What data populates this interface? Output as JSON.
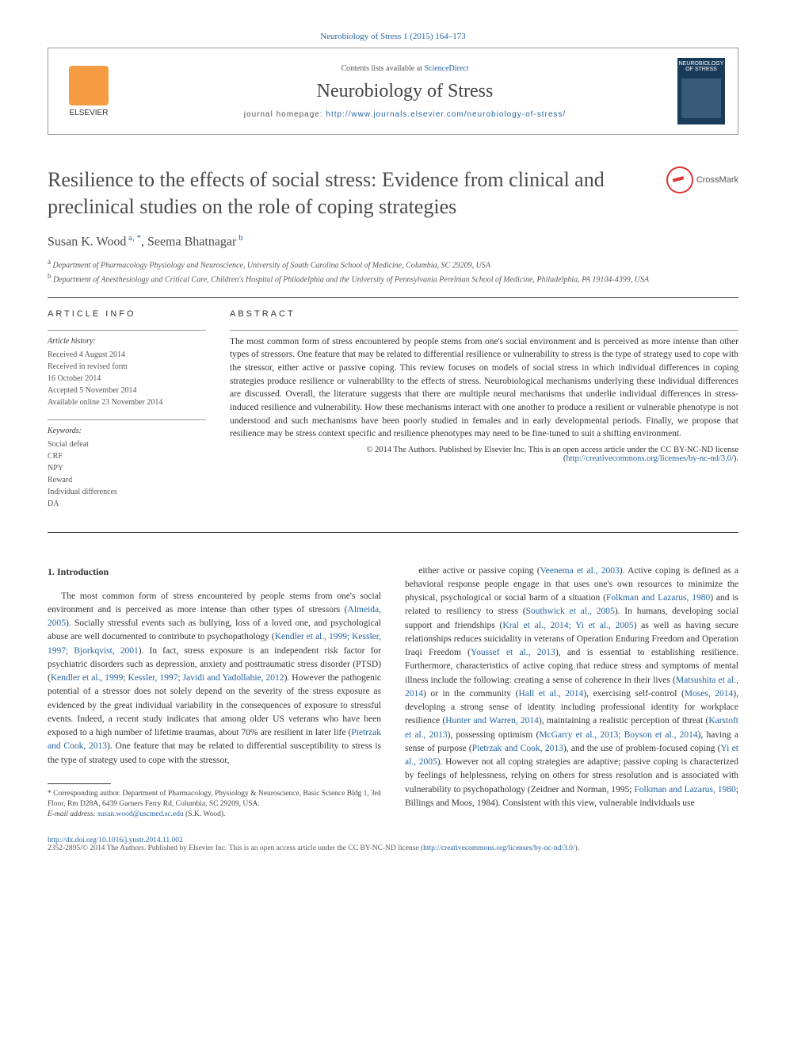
{
  "citation": "Neurobiology of Stress 1 (2015) 164–173",
  "header": {
    "contents_prefix": "Contents lists available at ",
    "contents_link": "ScienceDirect",
    "journal_name": "Neurobiology of Stress",
    "homepage_prefix": "journal homepage: ",
    "homepage_url": "http://www.journals.elsevier.com/neurobiology-of-stress/",
    "elsevier_label": "ELSEVIER",
    "cover_label": "NEUROBIOLOGY OF STRESS"
  },
  "title": "Resilience to the effects of social stress: Evidence from clinical and preclinical studies on the role of coping strategies",
  "crossmark_label": "CrossMark",
  "authors_html": "Susan K. Wood",
  "author1": "Susan K. Wood",
  "author1_sup": " a, *",
  "sep": ", ",
  "author2": "Seema Bhatnagar",
  "author2_sup": " b",
  "affiliations": {
    "a": "Department of Pharmacology Physiology and Neuroscience, University of South Carolina School of Medicine, Columbia, SC 29209, USA",
    "b": "Department of Anesthesiology and Critical Care, Children's Hospital of Philadelphia and the University of Pennsylvania Perelman School of Medicine, Philadelphia, PA 19104-4399, USA"
  },
  "article_info": {
    "heading": "ARTICLE INFO",
    "history_label": "Article history:",
    "received": "Received 4 August 2014",
    "revised": "Received in revised form",
    "revised_date": "16 October 2014",
    "accepted": "Accepted 5 November 2014",
    "online": "Available online 23 November 2014",
    "keywords_label": "Keywords:",
    "keywords": [
      "Social defeat",
      "CRF",
      "NPY",
      "Reward",
      "Individual differences",
      "DA"
    ]
  },
  "abstract": {
    "heading": "ABSTRACT",
    "text": "The most common form of stress encountered by people stems from one's social environment and is perceived as more intense than other types of stressors. One feature that may be related to differential resilience or vulnerability to stress is the type of strategy used to cope with the stressor, either active or passive coping. This review focuses on models of social stress in which individual differences in coping strategies produce resilience or vulnerability to the effects of stress. Neurobiological mechanisms underlying these individual differences are discussed. Overall, the literature suggests that there are multiple neural mechanisms that underlie individual differences in stress-induced resilience and vulnerability. How these mechanisms interact with one another to produce a resilient or vulnerable phenotype is not understood and such mechanisms have been poorly studied in females and in early developmental periods. Finally, we propose that resilience may be stress context specific and resilience phenotypes may need to be fine-tuned to suit a shifting environment.",
    "copyright": "© 2014 The Authors. Published by Elsevier Inc. This is an open access article under the CC BY-NC-ND license (",
    "license_url": "http://creativecommons.org/licenses/by-nc-nd/3.0/",
    "copyright_close": ")."
  },
  "section1": {
    "heading": "1. Introduction",
    "col1": "The most common form of stress encountered by people stems from one's social environment and is perceived as more intense than other types of stressors (Almeida, 2005). Socially stressful events such as bullying, loss of a loved one, and psychological abuse are well documented to contribute to psychopathology (Kendler et al., 1999; Kessler, 1997; Bjorkqvist, 2001). In fact, stress exposure is an independent risk factor for psychiatric disorders such as depression, anxiety and posttraumatic stress disorder (PTSD) (Kendler et al., 1999; Kessler, 1997; Javidi and Yadollahie, 2012). However the pathogenic potential of a stressor does not solely depend on the severity of the stress exposure as evidenced by the great individual variability in the consequences of exposure to stressful events. Indeed, a recent study indicates that among older US veterans who have been exposed to a high number of lifetime traumas, about 70% are resilient in later life (Pietrzak and Cook, 2013). One feature that may be related to differential susceptibility to stress is the type of strategy used to cope with the stressor,",
    "col2": "either active or passive coping (Veenema et al., 2003). Active coping is defined as a behavioral response people engage in that uses one's own resources to minimize the physical, psychological or social harm of a situation (Folkman and Lazarus, 1980) and is related to resiliency to stress (Southwick et al., 2005). In humans, developing social support and friendships (Kral et al., 2014; Yi et al., 2005) as well as having secure relationships reduces suicidality in veterans of Operation Enduring Freedom and Operation Iraqi Freedom (Youssef et al., 2013), and is essential to establishing resilience. Furthermore, characteristics of active coping that reduce stress and symptoms of mental illness include the following: creating a sense of coherence in their lives (Matsushita et al., 2014) or in the community (Hall et al., 2014), exercising self-control (Moses, 2014), developing a strong sense of identity including professional identity for workplace resilience (Hunter and Warren, 2014), maintaining a realistic perception of threat (Karstoft et al., 2013), possessing optimism (McGarry et al., 2013; Boyson et al., 2014), having a sense of purpose (Pietrzak and Cook, 2013), and the use of problem-focused coping (Yi et al., 2005). However not all coping strategies are adaptive; passive coping is characterized by feelings of helplessness, relying on others for stress resolution and is associated with vulnerability to psychopathology (Zeidner and Norman, 1995; Folkman and Lazarus, 1980; Billings and Moos, 1984). Consistent with this view, vulnerable individuals use"
  },
  "footnote": {
    "corresponding": "* Corresponding author. Department of Pharmacology, Physiology & Neuroscience, Basic Science Bldg 1, 3rd Floor, Rm D28A, 6439 Garners Ferry Rd, Columbia, SC 29209, USA.",
    "email_label": "E-mail address: ",
    "email": "susan.wood@uscmed.sc.edu",
    "email_suffix": " (S.K. Wood)."
  },
  "bottom": {
    "doi": "http://dx.doi.org/10.1016/j.ynstr.2014.11.002",
    "issn_line": "2352-2895/© 2014 The Authors. Published by Elsevier Inc. This is an open access article under the CC BY-NC-ND license (",
    "license_url": "http://creativecommons.org/licenses/by-nc-nd/3.0/",
    "close": ")."
  },
  "refs_col1": [
    "Almeida, 2005",
    "Kendler et al., 1999; Kessler, 1997; Bjorkqvist, 2001",
    "Kendler et al., 1999; Kessler, 1997; Javidi and Yadollahie, 2012",
    "Pietrzak and Cook, 2013"
  ],
  "refs_col2": [
    "Veenema et al., 2003",
    "Folkman and Lazarus, 1980",
    "Southwick et al., 2005",
    "Kral et al., 2014; Yi et al., 2005",
    "Youssef et al., 2013",
    "Matsushita et al., 2014",
    "Hall et al., 2014",
    "Moses, 2014",
    "Hunter and Warren, 2014",
    "Karstoft et al., 2013",
    "McGarry et al., 2013; Boyson et al., 2014",
    "Pietrzak and Cook, 2013",
    "Yi et al., 2005",
    "Zeidner and Norman, 1995; Folkman and Lazarus, 1980; Billings and Moos, 1984"
  ]
}
